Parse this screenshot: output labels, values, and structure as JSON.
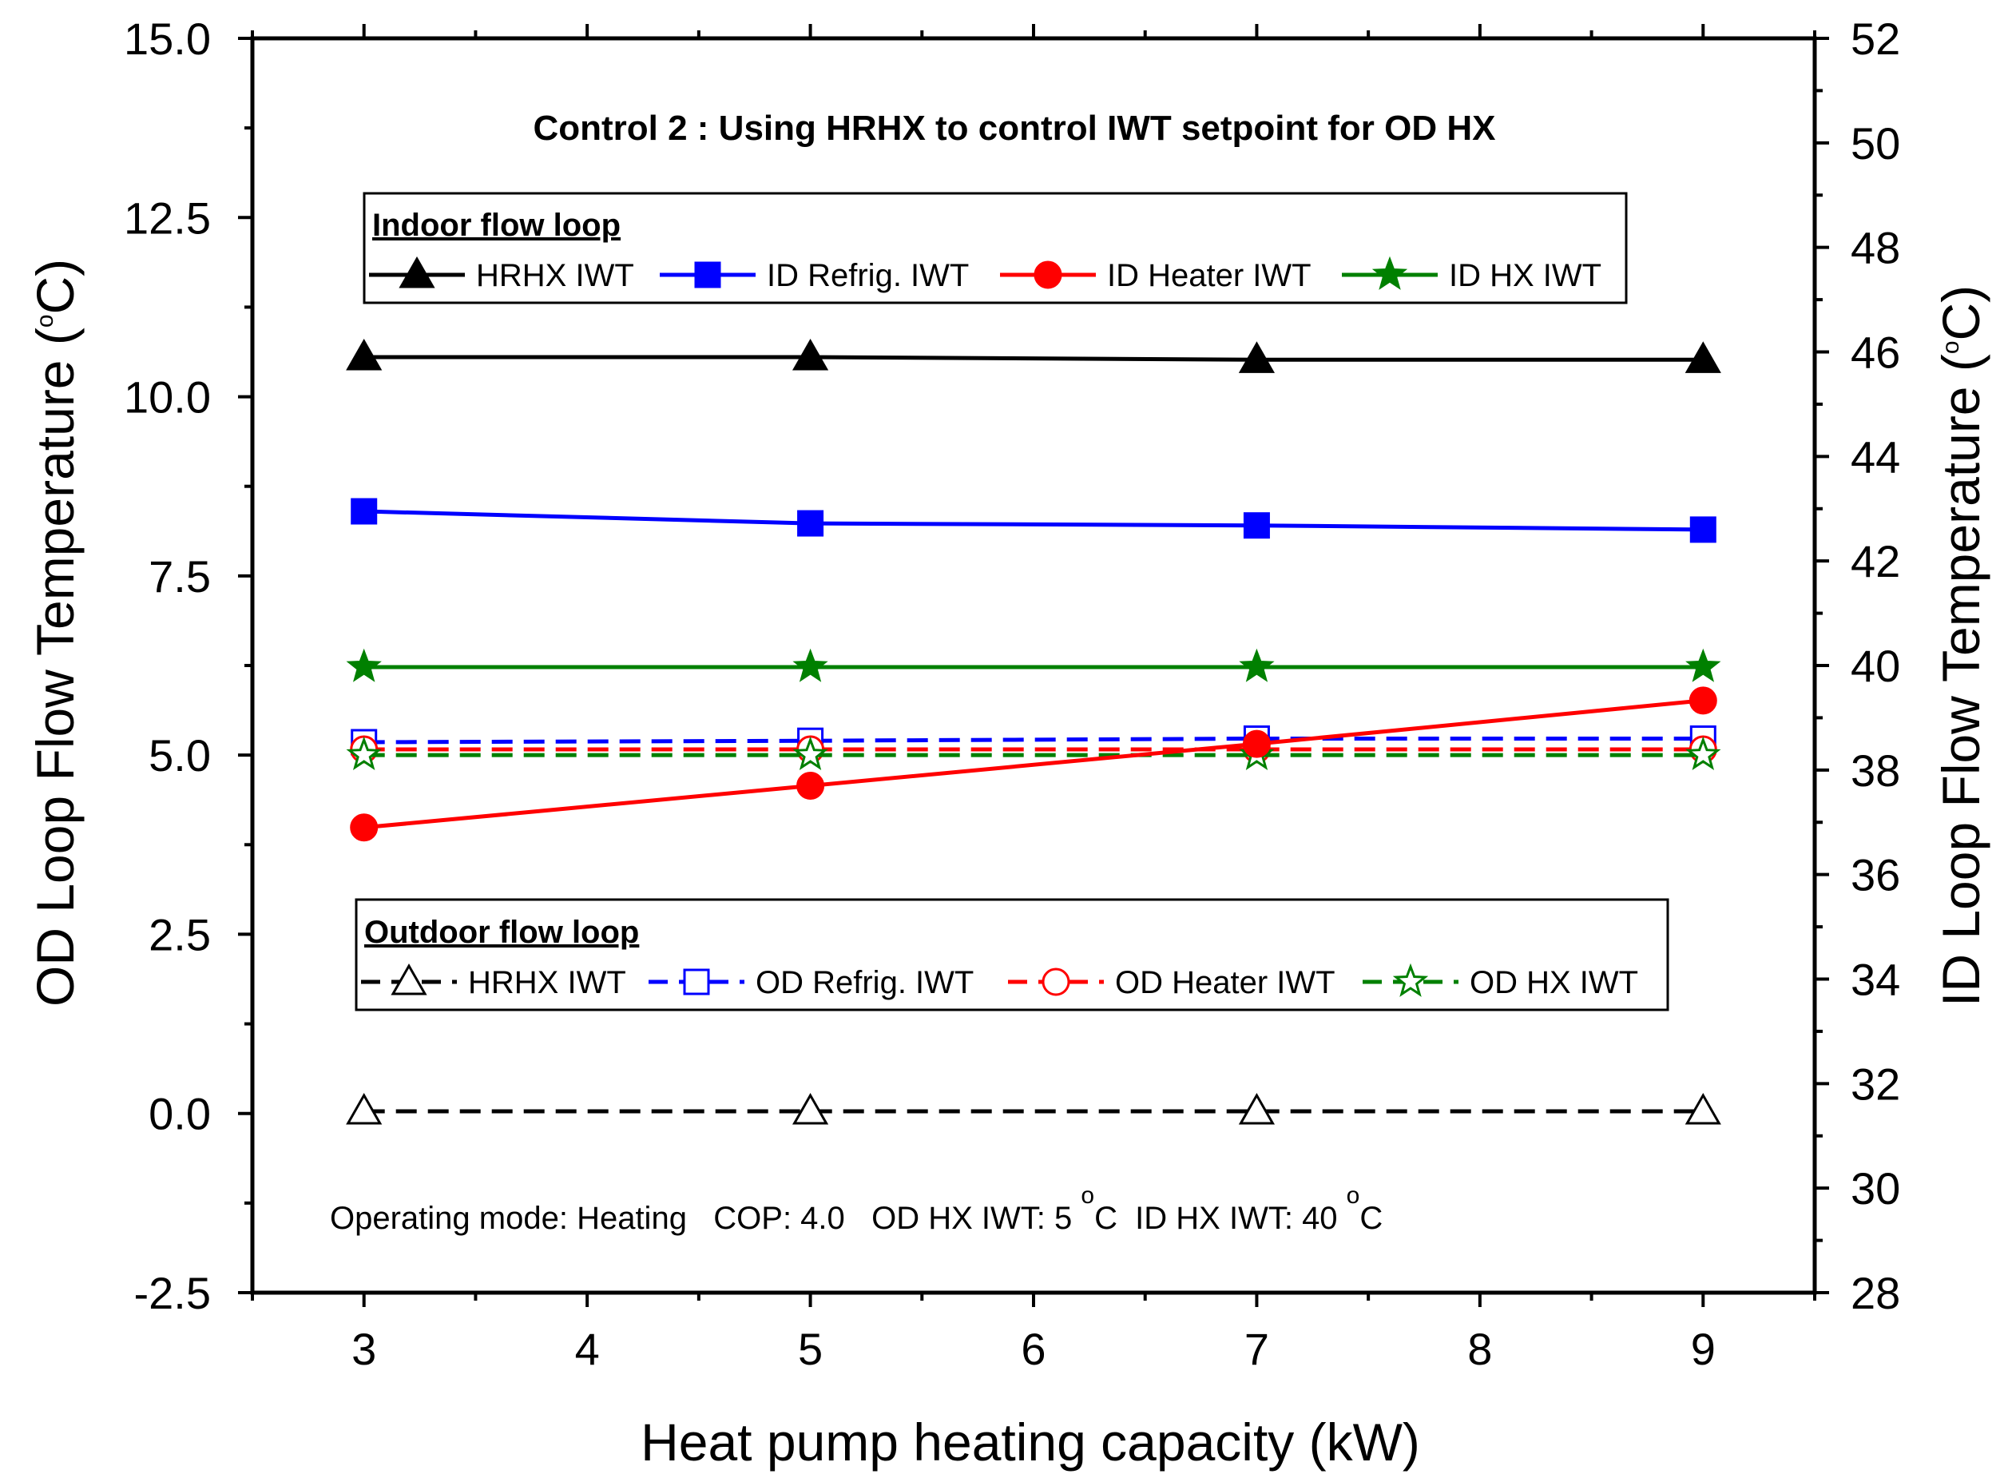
{
  "chart_data": {
    "type": "line",
    "title": "Control 2 : Using HRHX to control IWT setpoint for OD HX",
    "xlabel": "Heat pump heating capacity (kW)",
    "ylabel_left": "OD Loop Flow Temperature (",
    "ylabel_right": "ID Loop Flow Temperature (",
    "degree_symbol": "o",
    "celsius_close": "C)",
    "xlim": [
      2.5,
      9.5
    ],
    "ylim_left": [
      -2.5,
      15.0
    ],
    "ylim_right": [
      28,
      52
    ],
    "x_ticks": [
      3,
      4,
      5,
      6,
      7,
      8,
      9
    ],
    "x_tick_labels": [
      "3",
      "4",
      "5",
      "6",
      "7",
      "8",
      "9"
    ],
    "y_left_ticks": [
      -2.5,
      0.0,
      2.5,
      5.0,
      7.5,
      10.0,
      12.5,
      15.0
    ],
    "y_left_tick_labels": [
      "-2.5",
      "0.0",
      "2.5",
      "5.0",
      "7.5",
      "10.0",
      "12.5",
      "15.0"
    ],
    "y_right_ticks": [
      28,
      30,
      32,
      34,
      36,
      38,
      40,
      42,
      44,
      46,
      48,
      50,
      52
    ],
    "y_right_tick_labels": [
      "28",
      "30",
      "32",
      "34",
      "36",
      "38",
      "40",
      "42",
      "44",
      "46",
      "48",
      "50",
      "52"
    ],
    "x": [
      3,
      5,
      7,
      9
    ],
    "series": [
      {
        "name": "HRHX IWT",
        "group": "indoor",
        "axis": "right",
        "values": [
          45.9,
          45.9,
          45.85,
          45.85
        ],
        "color": "#000000",
        "marker": "triangle",
        "filled": true,
        "dashed": false
      },
      {
        "name": "ID Refrig. IWT",
        "group": "indoor",
        "axis": "right",
        "values": [
          42.95,
          42.72,
          42.68,
          42.6
        ],
        "color": "#0000ff",
        "marker": "square",
        "filled": true,
        "dashed": false
      },
      {
        "name": "ID Heater IWT",
        "group": "indoor",
        "axis": "right",
        "values": [
          36.9,
          37.7,
          38.5,
          39.33
        ],
        "color": "#ff0000",
        "marker": "circle",
        "filled": true,
        "dashed": false
      },
      {
        "name": "ID HX IWT",
        "group": "indoor",
        "axis": "right",
        "values": [
          39.97,
          39.97,
          39.97,
          39.97
        ],
        "color": "#008000",
        "marker": "star",
        "filled": true,
        "dashed": false
      },
      {
        "name": "HRHX IWT",
        "group": "outdoor",
        "axis": "left",
        "values": [
          0.03,
          0.03,
          0.03,
          0.03
        ],
        "color": "#000000",
        "marker": "triangle",
        "filled": false,
        "dashed": true
      },
      {
        "name": "OD Refrig. IWT",
        "group": "outdoor",
        "axis": "left",
        "values": [
          5.18,
          5.2,
          5.23,
          5.23
        ],
        "color": "#0000ff",
        "marker": "square",
        "filled": false,
        "dashed": true
      },
      {
        "name": "OD Heater IWT",
        "group": "outdoor",
        "axis": "left",
        "values": [
          5.08,
          5.08,
          5.08,
          5.08
        ],
        "color": "#ff0000",
        "marker": "circle",
        "filled": false,
        "dashed": true
      },
      {
        "name": "OD HX IWT",
        "group": "outdoor",
        "axis": "left",
        "values": [
          5.0,
          5.0,
          5.0,
          5.0
        ],
        "color": "#008000",
        "marker": "star",
        "filled": false,
        "dashed": true
      }
    ],
    "legend_indoor_title": "Indoor flow loop",
    "legend_outdoor_title": "Outdoor flow loop",
    "legend_indoor_labels": [
      "HRHX IWT",
      "ID Refrig. IWT",
      "ID Heater IWT",
      "ID HX IWT"
    ],
    "legend_outdoor_labels": [
      "HRHX IWT",
      "OD Refrig. IWT",
      "OD Heater IWT",
      "OD HX IWT"
    ],
    "annotation": {
      "part1": "Operating mode: Heating   COP: 4.0   OD HX IWT: 5 ",
      "sup1": "o",
      "part2": "C  ID HX IWT: 40 ",
      "sup2": "o",
      "part3": "C"
    }
  }
}
